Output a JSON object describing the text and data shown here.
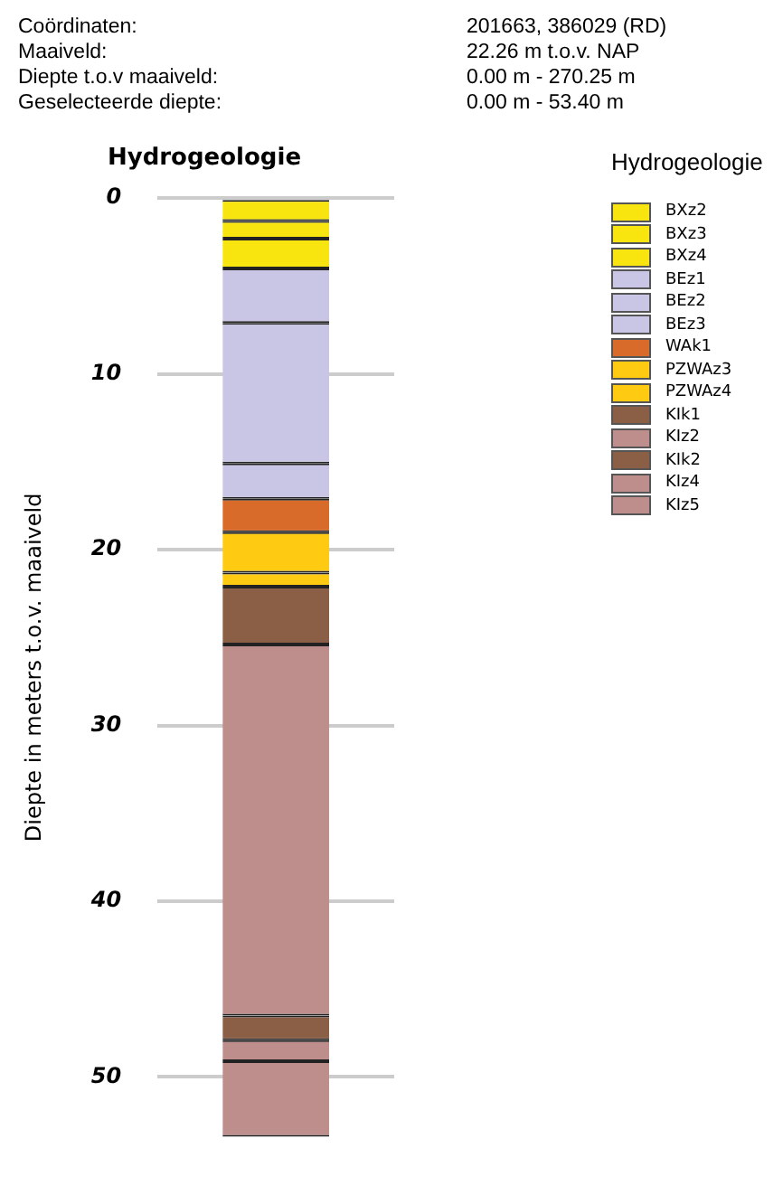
{
  "chart_data": {
    "type": "bar",
    "title": "Hydrogeologie",
    "legend_title": "Hydrogeologie",
    "ylabel": "Diepte in meters t.o.v. maaiveld",
    "annotations": [
      "Coördinaten:",
      "201663, 386029 (RD)",
      "Maaiveld:",
      "22.26 m t.o.v. NAP",
      "Diepte t.o.v maaiveld:",
      "0.00 m - 270.25 m",
      "Geselecteerde diepte:",
      "0.00 m - 53.40 m"
    ],
    "categories": [
      null
    ],
    "stacked": true,
    "ylim": [
      53.4,
      0
    ],
    "yticks": [
      0,
      10,
      20,
      30,
      40,
      50
    ],
    "grid": "y",
    "legend": "right",
    "tick_labels": "y",
    "series": [
      {
        "name": "BXz2",
        "color": "#f8e510",
        "values": [
          1.3
        ]
      },
      {
        "name": "BXz3",
        "color": "#f8e510",
        "values": [
          1.0
        ]
      },
      {
        "name": "BXz4",
        "color": "#f8e510",
        "values": [
          1.7
        ]
      },
      {
        "name": "BEz1",
        "color": "#c8c6e4",
        "values": [
          3.1
        ]
      },
      {
        "name": "BEz2",
        "color": "#c8c6e4",
        "values": [
          8.0
        ]
      },
      {
        "name": "BEz3",
        "color": "#c8c6e4",
        "values": [
          2.0
        ]
      },
      {
        "name": "WAk1",
        "color": "#d96b2a",
        "values": [
          1.9
        ]
      },
      {
        "name": "PZWAz3",
        "color": "#fecb12",
        "values": [
          2.3
        ]
      },
      {
        "name": "PZWAz4",
        "color": "#fecb12",
        "values": [
          0.8
        ]
      },
      {
        "name": "KIk1",
        "color": "#8b5e46",
        "values": [
          3.3
        ]
      },
      {
        "name": "KIz2",
        "color": "#bd8e8c",
        "values": [
          21.1
        ]
      },
      {
        "name": "KIk2",
        "color": "#8b5e46",
        "values": [
          1.4
        ]
      },
      {
        "name": "KIz4",
        "color": "#bd8e8c",
        "values": [
          1.2
        ]
      },
      {
        "name": "KIz5",
        "color": "#bd8e8c",
        "values": [
          4.3
        ]
      }
    ]
  }
}
